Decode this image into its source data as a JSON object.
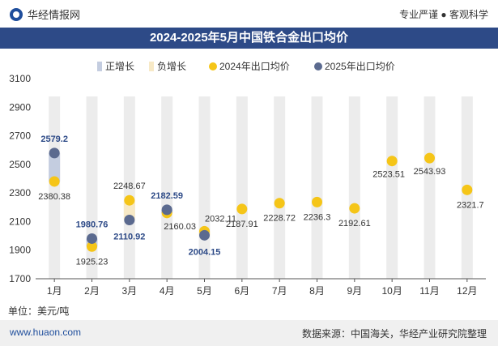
{
  "header": {
    "brand": "华经情报网",
    "slogan": "专业严谨 ● 客观科学"
  },
  "chart_data": {
    "type": "scatter",
    "title": "2024-2025年5月中国铁合金出口均价",
    "categories": [
      "1月",
      "2月",
      "3月",
      "4月",
      "5月",
      "6月",
      "7月",
      "8月",
      "9月",
      "10月",
      "11月",
      "12月"
    ],
    "series": [
      {
        "name": "2024年出口均价",
        "color": "#f5c518",
        "values": [
          2380.38,
          1925.23,
          2248.67,
          2160.03,
          2032.11,
          2187.91,
          2228.72,
          2236.3,
          2192.61,
          2523.51,
          2543.93,
          2321.7
        ]
      },
      {
        "name": "2025年出口均价",
        "color": "#5b6a8f",
        "values": [
          2579.2,
          1980.76,
          2110.92,
          2182.59,
          2004.15,
          null,
          null,
          null,
          null,
          null,
          null,
          null
        ]
      }
    ],
    "legend": [
      "正增长",
      "负增长",
      "2024年出口均价",
      "2025年出口均价"
    ],
    "legend_colors": {
      "positive": "#c4cde0",
      "negative": "#f7e9c6"
    },
    "ylim": [
      1700,
      3100
    ],
    "yticks": [
      1700,
      1900,
      2100,
      2300,
      2500,
      2700,
      2900,
      3100
    ],
    "unit": "单位：美元/吨"
  },
  "footer": {
    "left": "www.huaon.com",
    "right": "数据来源：中国海关，华经产业研究院整理"
  }
}
